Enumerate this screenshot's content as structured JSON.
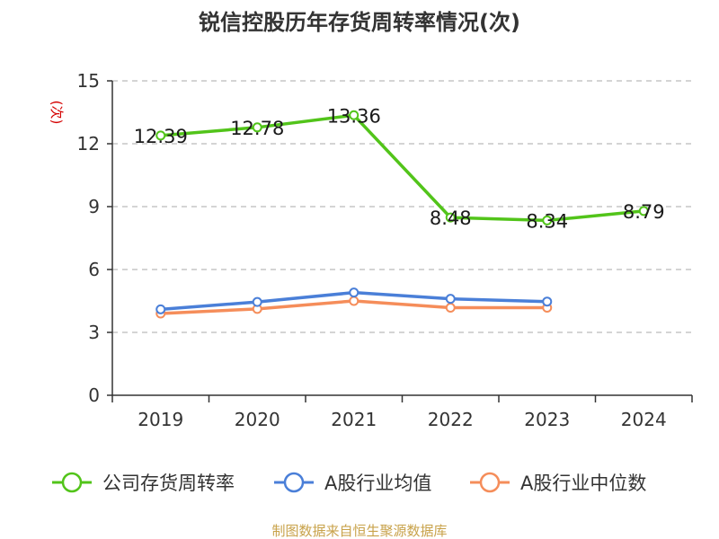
{
  "chart_data": {
    "type": "line",
    "title": "锐信控股历年存货周转率情况(次)",
    "ylabel": "(次)",
    "categories": [
      "2019",
      "2020",
      "2021",
      "2022",
      "2023",
      "2024"
    ],
    "ylim": [
      0,
      15
    ],
    "yticks": [
      0,
      3,
      6,
      9,
      12,
      15
    ],
    "grid": true,
    "legend_position": "bottom",
    "series": [
      {
        "name": "公司存货周转率",
        "color": "#52c41a",
        "values": [
          12.39,
          12.78,
          13.36,
          8.48,
          8.34,
          8.79
        ],
        "labels": [
          "12.39",
          "12.78",
          "13.36",
          "8.48",
          "8.34",
          "8.79"
        ]
      },
      {
        "name": "A股行业均值",
        "color": "#4a7fd8",
        "values": [
          4.1,
          4.45,
          4.9,
          4.6,
          4.47,
          null
        ]
      },
      {
        "name": "A股行业中位数",
        "color": "#f58d5a",
        "values": [
          3.9,
          4.12,
          4.5,
          4.18,
          4.18,
          null
        ]
      }
    ],
    "source": "制图数据来自恒生聚源数据库",
    "colors": {
      "axis": "#333333",
      "grid": "#bbbbbb",
      "unit": "#d40000",
      "source": "#c8a24a"
    }
  }
}
